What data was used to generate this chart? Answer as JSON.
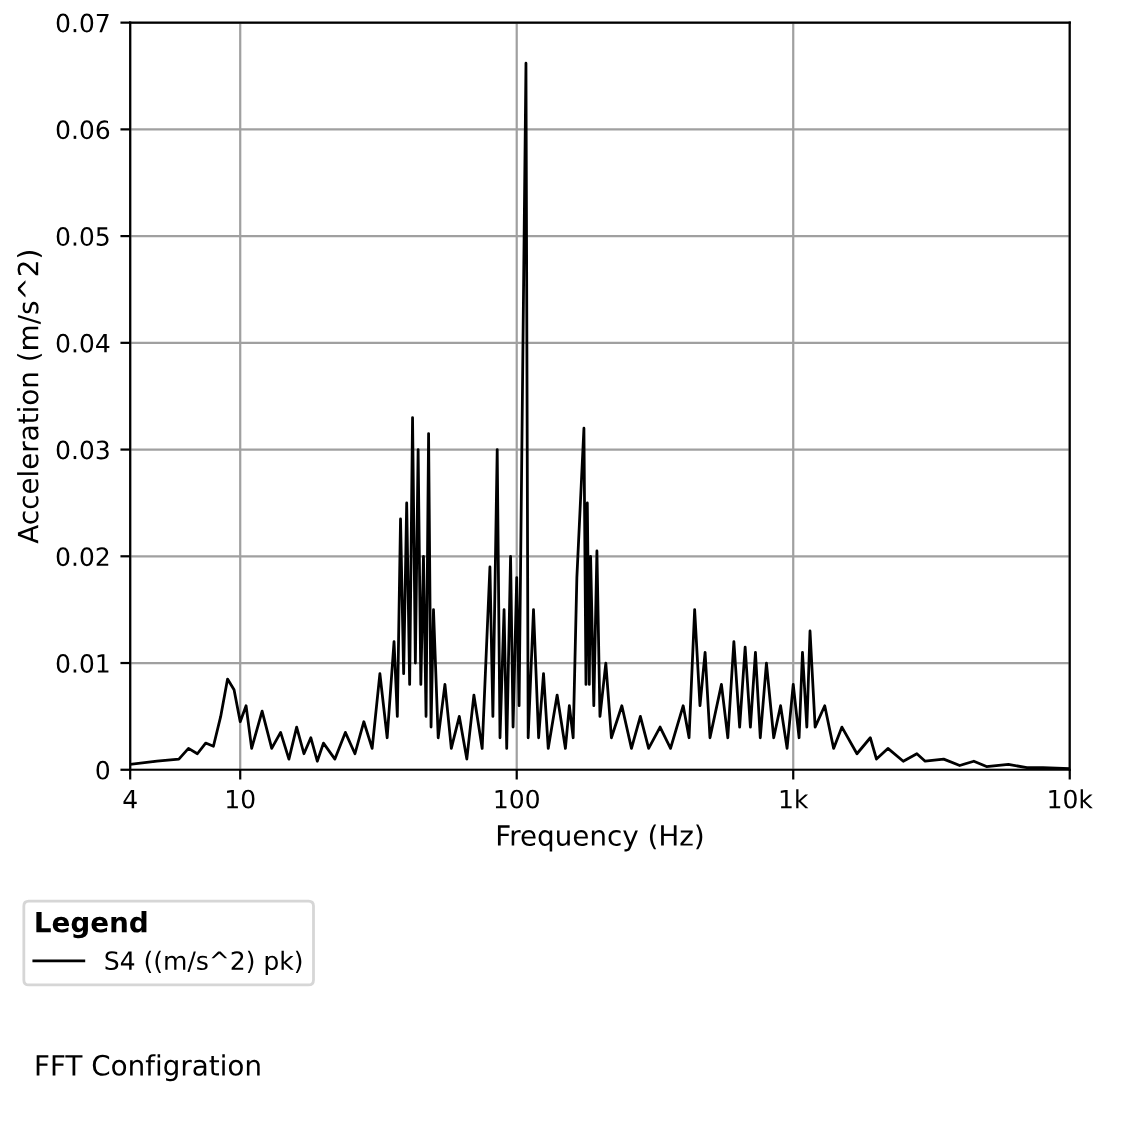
{
  "chart_data": {
    "type": "line",
    "xlabel": "Frequency (Hz)",
    "ylabel": "Acceleration (m/s^2)",
    "legend_title": "Legend",
    "annotations": [
      "FFT Configration"
    ],
    "log": "x",
    "xlim": [
      4,
      10000
    ],
    "xticks": [
      4,
      10,
      100,
      {
        "value": 1000,
        "label": "1k"
      },
      {
        "value": 10000,
        "label": "10k"
      }
    ],
    "ylim": [
      0,
      0.07
    ],
    "yticks": [
      0,
      0.01,
      0.02,
      0.03,
      0.04,
      0.05,
      0.06,
      0.07
    ],
    "grid": true,
    "legend": "bottom",
    "x": [
      4,
      5,
      6,
      6.5,
      7,
      7.5,
      8,
      8.5,
      9,
      9.5,
      10,
      10.5,
      11,
      12,
      13,
      14,
      15,
      16,
      17,
      18,
      19,
      20,
      22,
      24,
      26,
      28,
      30,
      32,
      34,
      36,
      37,
      38,
      39,
      40,
      41,
      42,
      43,
      44,
      45,
      46,
      47,
      48,
      49,
      50,
      52,
      55,
      58,
      62,
      66,
      70,
      75,
      80,
      82,
      85,
      87,
      90,
      92,
      95,
      97,
      100,
      102,
      108,
      110,
      115,
      120,
      125,
      130,
      140,
      150,
      155,
      160,
      165,
      175,
      178,
      180,
      183,
      185,
      190,
      195,
      200,
      210,
      220,
      240,
      260,
      280,
      300,
      330,
      360,
      400,
      420,
      440,
      460,
      480,
      500,
      550,
      580,
      610,
      640,
      670,
      700,
      730,
      760,
      800,
      850,
      900,
      950,
      1000,
      1050,
      1080,
      1120,
      1150,
      1200,
      1300,
      1400,
      1500,
      1700,
      1900,
      2000,
      2200,
      2500,
      2800,
      3000,
      3500,
      4000,
      4500,
      5000,
      6000,
      7000,
      8000,
      10000
    ],
    "series": [
      {
        "name": "S4 ((m/s^2) pk)",
        "color": "#000000",
        "values": [
          0.0005,
          0.0008,
          0.001,
          0.002,
          0.0015,
          0.0025,
          0.0022,
          0.005,
          0.0085,
          0.0075,
          0.0045,
          0.006,
          0.002,
          0.0055,
          0.002,
          0.0035,
          0.001,
          0.004,
          0.0015,
          0.003,
          0.0008,
          0.0025,
          0.001,
          0.0035,
          0.0015,
          0.0045,
          0.002,
          0.009,
          0.003,
          0.012,
          0.005,
          0.0235,
          0.009,
          0.025,
          0.008,
          0.033,
          0.01,
          0.03,
          0.008,
          0.02,
          0.005,
          0.0315,
          0.004,
          0.015,
          0.003,
          0.008,
          0.002,
          0.005,
          0.001,
          0.007,
          0.002,
          0.019,
          0.005,
          0.03,
          0.003,
          0.015,
          0.002,
          0.02,
          0.004,
          0.018,
          0.006,
          0.0662,
          0.003,
          0.015,
          0.003,
          0.009,
          0.002,
          0.007,
          0.002,
          0.006,
          0.003,
          0.018,
          0.032,
          0.008,
          0.025,
          0.008,
          0.02,
          0.006,
          0.0205,
          0.005,
          0.01,
          0.003,
          0.006,
          0.002,
          0.005,
          0.002,
          0.004,
          0.002,
          0.006,
          0.003,
          0.015,
          0.006,
          0.011,
          0.003,
          0.008,
          0.003,
          0.012,
          0.004,
          0.0115,
          0.004,
          0.011,
          0.003,
          0.01,
          0.003,
          0.006,
          0.002,
          0.008,
          0.003,
          0.011,
          0.004,
          0.013,
          0.004,
          0.006,
          0.002,
          0.004,
          0.0015,
          0.003,
          0.001,
          0.002,
          0.0008,
          0.0015,
          0.0008,
          0.001,
          0.0004,
          0.0008,
          0.0003,
          0.0005,
          0.0002,
          0.0002,
          0.0001
        ]
      }
    ]
  }
}
